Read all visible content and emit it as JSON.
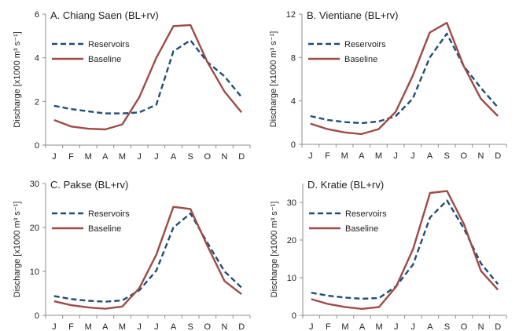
{
  "chart_data": [
    {
      "type": "line",
      "title": "A. Chiang Saen (BL+rv)",
      "ylabel": "Discharge [x1000 m³ s⁻¹]",
      "categories": [
        "J",
        "F",
        "M",
        "A",
        "M",
        "J",
        "J",
        "A",
        "S",
        "O",
        "N",
        "D"
      ],
      "ylim": [
        0,
        6
      ],
      "yticks": [
        0,
        2,
        4,
        6
      ],
      "grid": false,
      "legend_position": "top-left",
      "series": [
        {
          "name": "Reservoirs",
          "style": "dashed",
          "color": "#1f4e79",
          "values": [
            1.8,
            1.65,
            1.55,
            1.45,
            1.45,
            1.5,
            1.85,
            4.3,
            4.8,
            3.8,
            3.15,
            2.2
          ]
        },
        {
          "name": "Baseline",
          "style": "solid",
          "color": "#9e4b47",
          "values": [
            1.15,
            0.85,
            0.75,
            0.72,
            0.95,
            2.2,
            4.0,
            5.45,
            5.5,
            3.8,
            2.45,
            1.5
          ]
        }
      ]
    },
    {
      "type": "line",
      "title": "B. Vientiane (BL+rv)",
      "ylabel": "Discharge [x1000 m³ s⁻¹]",
      "categories": [
        "J",
        "F",
        "M",
        "A",
        "M",
        "J",
        "J",
        "A",
        "S",
        "O",
        "N",
        "D"
      ],
      "ylim": [
        0,
        12
      ],
      "yticks": [
        0,
        4,
        8,
        12
      ],
      "grid": false,
      "legend_position": "top-left",
      "series": [
        {
          "name": "Reservoirs",
          "style": "dashed",
          "color": "#1f4e79",
          "values": [
            2.6,
            2.25,
            2.05,
            1.95,
            2.1,
            2.6,
            4.2,
            8.0,
            10.2,
            7.2,
            5.2,
            3.4
          ]
        },
        {
          "name": "Baseline",
          "style": "solid",
          "color": "#9e4b47",
          "values": [
            1.9,
            1.4,
            1.1,
            0.95,
            1.4,
            3.0,
            6.3,
            10.3,
            11.2,
            7.2,
            4.2,
            2.6
          ]
        }
      ]
    },
    {
      "type": "line",
      "title": "C. Pakse (BL+rv)",
      "ylabel": "Discharge [x1000 m³ s⁻¹]",
      "categories": [
        "J",
        "F",
        "M",
        "A",
        "M",
        "J",
        "J",
        "A",
        "S",
        "O",
        "N",
        "D"
      ],
      "ylim": [
        0,
        30
      ],
      "yticks": [
        0,
        10,
        20,
        30
      ],
      "grid": false,
      "legend_position": "top-left",
      "series": [
        {
          "name": "Reservoirs",
          "style": "dashed",
          "color": "#1f4e79",
          "values": [
            4.4,
            3.7,
            3.3,
            3.1,
            3.4,
            5.7,
            10.2,
            20.0,
            23.2,
            16.5,
            10.0,
            6.3
          ]
        },
        {
          "name": "Baseline",
          "style": "solid",
          "color": "#9e4b47",
          "values": [
            3.2,
            2.3,
            1.8,
            1.5,
            2.0,
            6.2,
            13.8,
            24.7,
            24.2,
            15.8,
            7.8,
            4.8
          ]
        }
      ]
    },
    {
      "type": "line",
      "title": "D. Kratie (BL+rv)",
      "ylabel": "Discharge [x1000 m³ s⁻¹]",
      "categories": [
        "J",
        "F",
        "M",
        "A",
        "M",
        "J",
        "J",
        "A",
        "S",
        "O",
        "N",
        "D"
      ],
      "ylim": [
        0,
        35
      ],
      "yticks": [
        0,
        10,
        20,
        30
      ],
      "grid": false,
      "legend_position": "top-left",
      "series": [
        {
          "name": "Reservoirs",
          "style": "dashed",
          "color": "#1f4e79",
          "values": [
            6.0,
            5.2,
            4.7,
            4.4,
            4.6,
            7.7,
            13.5,
            26.0,
            30.5,
            23.0,
            13.8,
            8.3
          ]
        },
        {
          "name": "Baseline",
          "style": "solid",
          "color": "#9e4b47",
          "values": [
            4.3,
            3.0,
            2.2,
            1.7,
            2.2,
            7.6,
            17.6,
            32.5,
            33.0,
            24.2,
            11.8,
            6.8
          ]
        }
      ]
    }
  ]
}
